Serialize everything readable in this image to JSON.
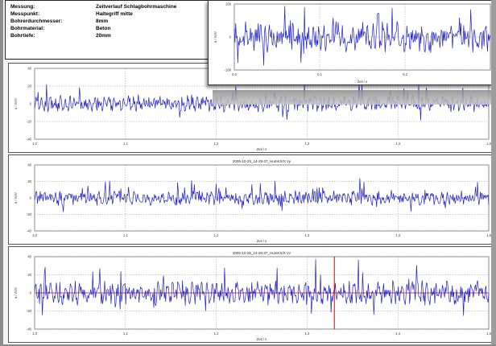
{
  "info": {
    "rows": [
      {
        "label": "Messung:",
        "value": "Zeitverlauf Schlagbohrmaschine"
      },
      {
        "label": "Messpunkt:",
        "value": "Haltegriff mitte"
      },
      {
        "label": "Bohrerdurchmesser:",
        "value": "8mm"
      },
      {
        "label": "Bohrmaterial:",
        "value": "Beton"
      },
      {
        "label": "Bohrtiefe:",
        "value": "20mm"
      }
    ]
  },
  "colors": {
    "signal": "#1f1fc8",
    "cursor": "#e00000",
    "grid": "#999999"
  },
  "chart_data": [
    {
      "type": "line",
      "title": "",
      "xlabel": "Zeit / s",
      "ylabel": "a / m/s²",
      "xlim": [
        0.0,
        0.3
      ],
      "ylim": [
        -100,
        100
      ],
      "xticks": [
        "0,0",
        "0,1",
        "0,2"
      ],
      "yticks": [
        "100",
        "0",
        "-100"
      ],
      "grid": true,
      "series": [
        {
          "amplitude": 60
        }
      ]
    },
    {
      "type": "line",
      "title": "",
      "xlabel": "Zeit / s",
      "ylabel": "a / m/s²",
      "xlim": [
        1.0,
        1.5
      ],
      "ylim": [
        -40,
        40
      ],
      "xticks": [
        "1,0",
        "1,1",
        "1,2",
        "1,3",
        "1,4",
        "1,5"
      ],
      "yticks": [
        "40",
        "20",
        "0",
        "-20",
        "-40"
      ],
      "grid": true,
      "series": [
        {
          "amplitude": 12
        }
      ]
    },
    {
      "type": "line",
      "title": "2005-10-25_14-28-37_HumKS/S Vy",
      "xlabel": "Zeit / s",
      "ylabel": "a / m/s²",
      "xlim": [
        1.0,
        1.5
      ],
      "ylim": [
        -40,
        40
      ],
      "xticks": [
        "1,0",
        "1,1",
        "1,2",
        "1,3",
        "1,4",
        "1,5"
      ],
      "yticks": [
        "40",
        "20",
        "0",
        "-20",
        "-40"
      ],
      "grid": true,
      "series": [
        {
          "amplitude": 12
        }
      ]
    },
    {
      "type": "line",
      "title": "2005-10-25_14-28-37_HumKS/S Vz",
      "xlabel": "Zeit / s",
      "ylabel": "a / m/s²",
      "xlim": [
        1.0,
        1.5
      ],
      "ylim": [
        -40,
        40
      ],
      "xticks": [
        "1,0",
        "1,1",
        "1,2",
        "1,3",
        "1,4",
        "1,5"
      ],
      "yticks": [
        "40",
        "20",
        "0",
        "-20",
        "-40"
      ],
      "grid": true,
      "cursor_x": 1.33,
      "series": [
        {
          "amplitude": 18
        }
      ]
    }
  ]
}
